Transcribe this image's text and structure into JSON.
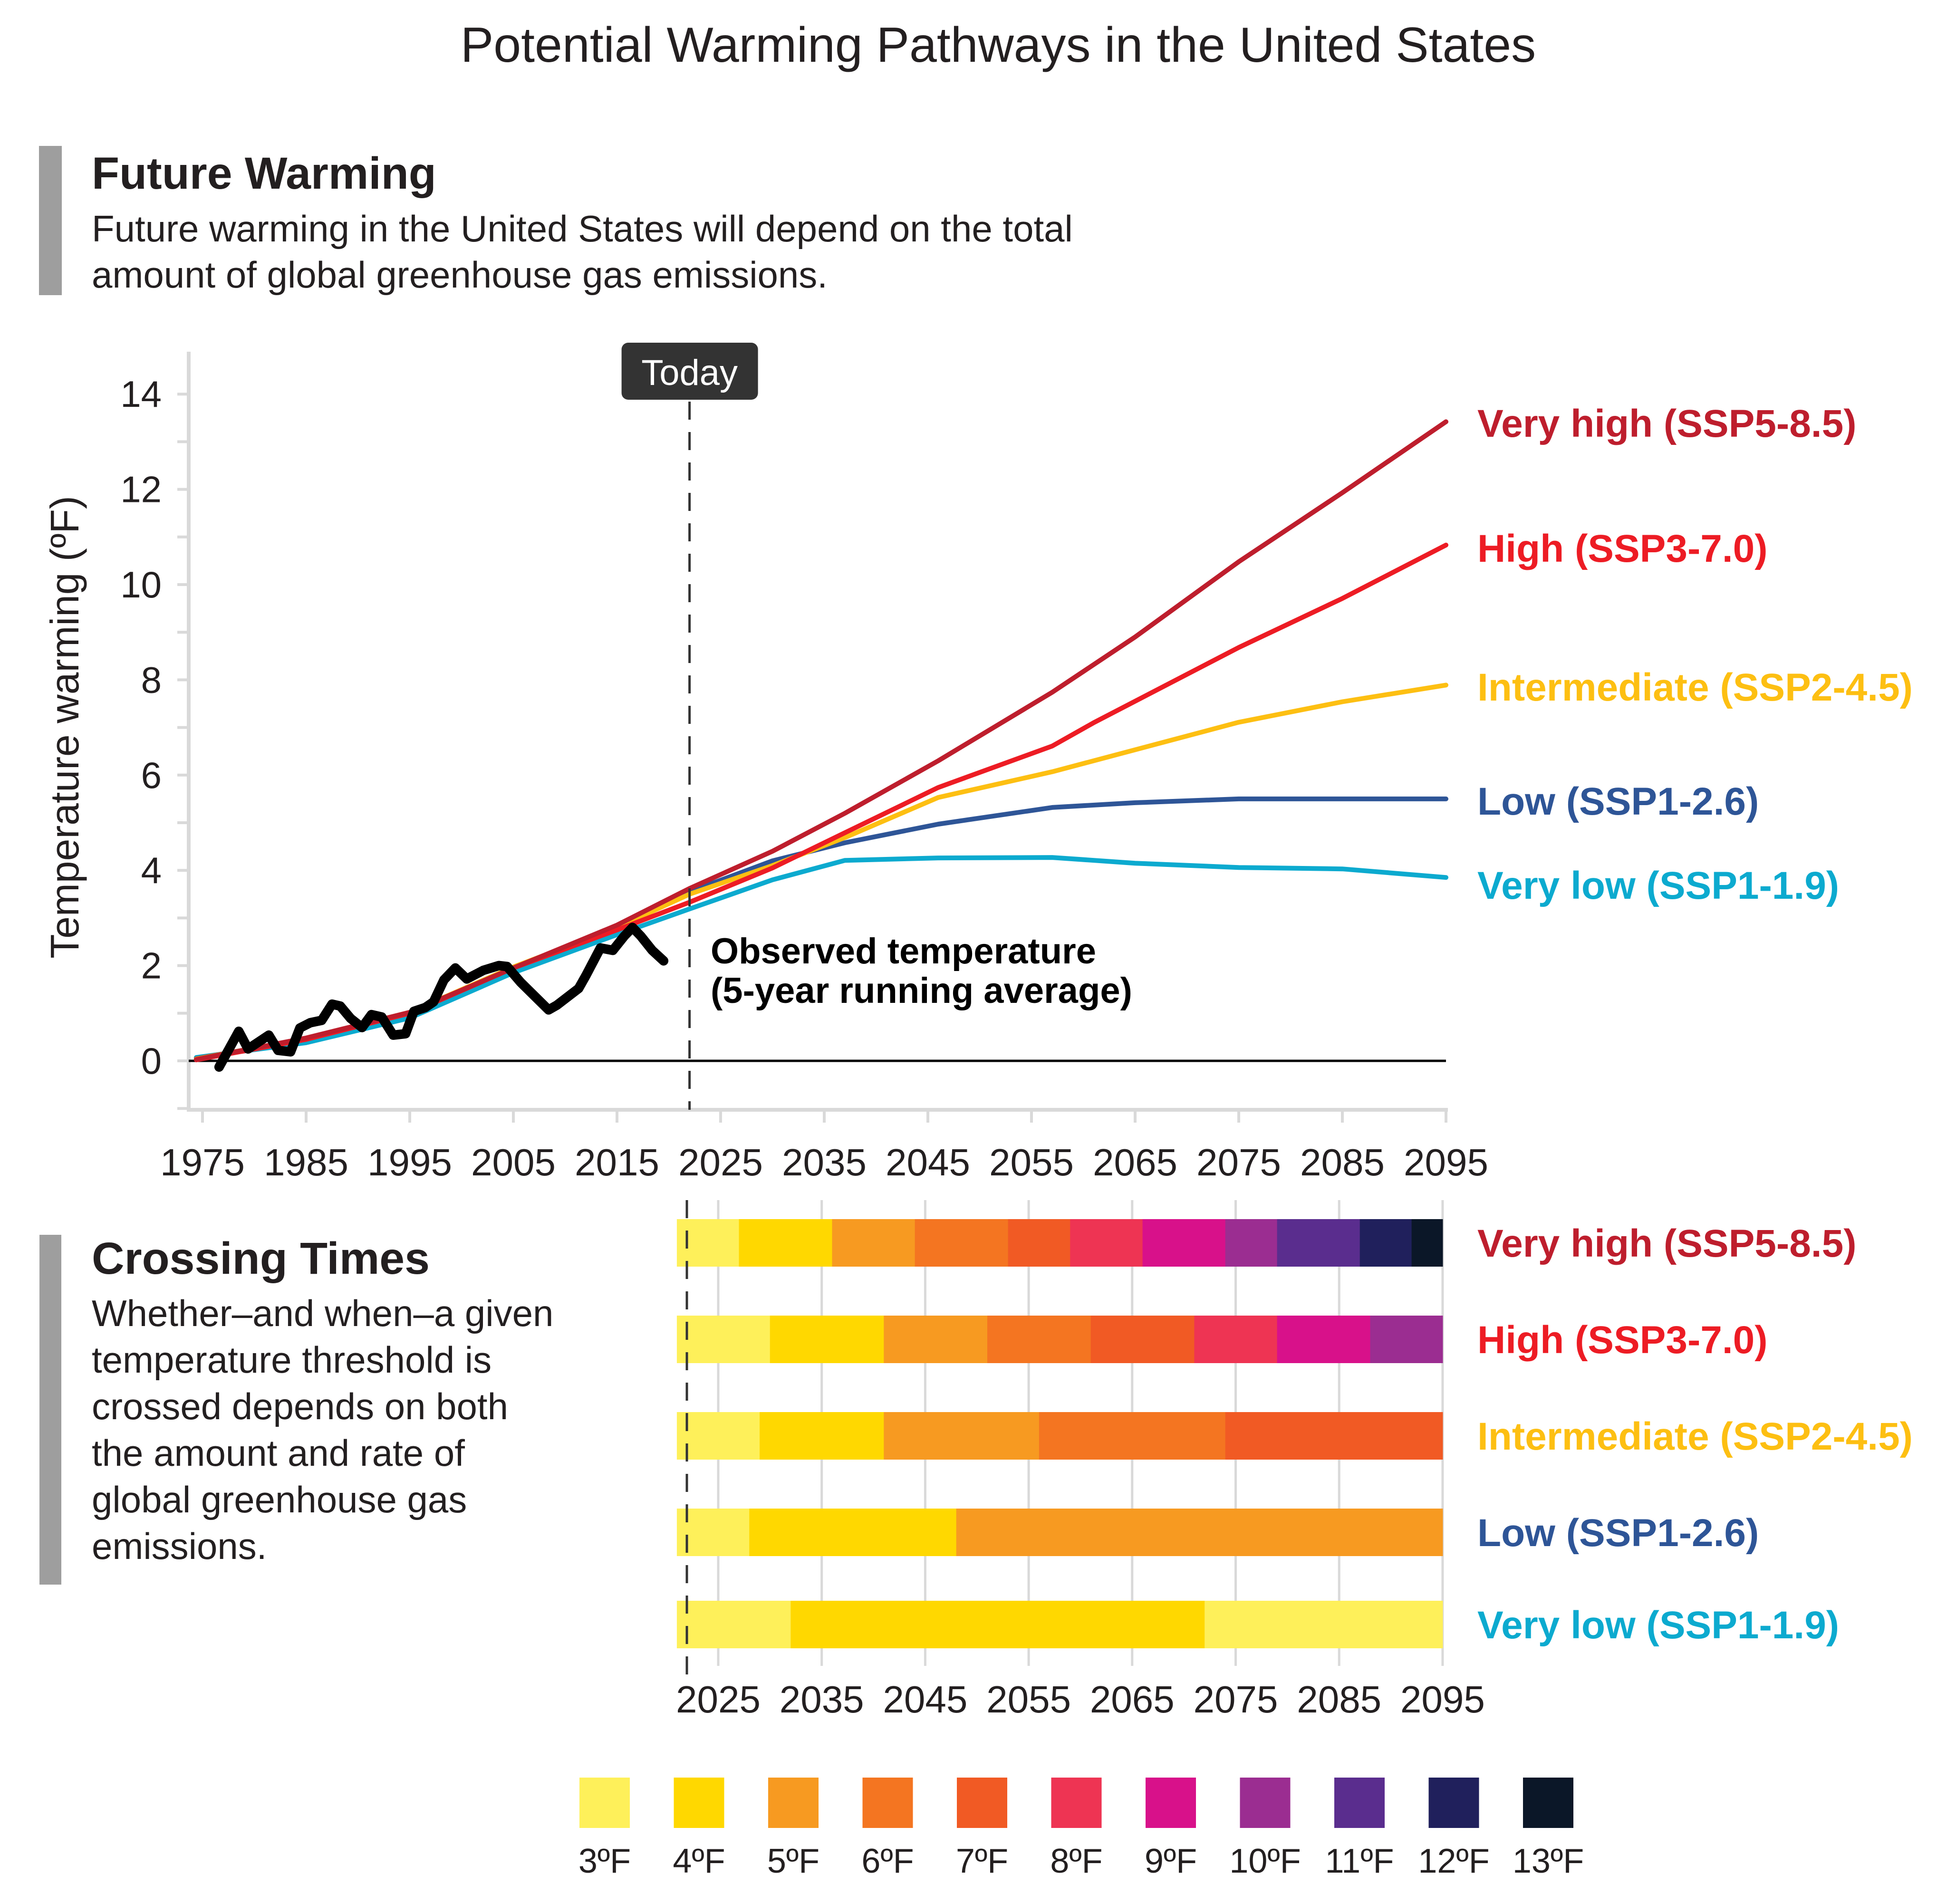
{
  "title": "Potential Warming Pathways in the United States",
  "future_section": {
    "heading": "Future Warming",
    "body_lines": [
      "Future warming in the United States will depend on the total",
      "amount of global greenhouse gas emissions."
    ]
  },
  "crossing_section": {
    "heading": "Crossing Times",
    "body_lines": [
      "Whether–and when–a given",
      "temperature threshold is",
      "crossed depends on both",
      "the amount and rate of",
      "global greenhouse gas",
      "emissions."
    ]
  },
  "colors": {
    "section_bar": "#9e9e9e",
    "axis": "#d9d9d9",
    "today_box": "#333333",
    "observed": "#000000"
  },
  "chart_data": [
    {
      "type": "line",
      "title": "Future Warming",
      "xlabel": "",
      "ylabel": "Temperature warming (ºF)",
      "xlim": [
        1974,
        2095
      ],
      "ylim": [
        -1,
        15
      ],
      "xticks": [
        1975,
        1985,
        1995,
        2005,
        2015,
        2025,
        2035,
        2045,
        2055,
        2065,
        2075,
        2085,
        2095
      ],
      "yticks": [
        0,
        2,
        4,
        6,
        8,
        10,
        12,
        14
      ],
      "grid": false,
      "today": {
        "label": "Today",
        "year": 2022
      },
      "annotation": {
        "lines": [
          "Observed temperature",
          "(5-year running average)"
        ]
      },
      "series": [
        {
          "key": "very_high",
          "name": "Very high (SSP5-8.5)",
          "color": "#BE1E2D",
          "x": [
            1974.4,
            1985,
            1995,
            2005,
            2015,
            2022,
            2030,
            2037,
            2046,
            2057,
            2065,
            2075,
            2085,
            2095
          ],
          "y": [
            0.03,
            0.48,
            1.02,
            1.95,
            2.85,
            3.62,
            4.4,
            5.2,
            6.3,
            7.74,
            8.9,
            10.48,
            11.93,
            13.42
          ]
        },
        {
          "key": "high",
          "name": "High (SSP3-7.0)",
          "color": "#ED1C24",
          "x": [
            1974.4,
            1985,
            1995,
            2005,
            2015,
            2022,
            2030,
            2037,
            2046,
            2057,
            2061,
            2075,
            2085,
            2095
          ],
          "y": [
            0.02,
            0.45,
            1.0,
            1.95,
            2.75,
            3.33,
            4.05,
            4.79,
            5.74,
            6.61,
            7.1,
            8.68,
            9.71,
            10.83
          ]
        },
        {
          "key": "intermediate",
          "name": "Intermediate (SSP2-4.5)",
          "color": "#FDBF12",
          "x": [
            1974.4,
            1985,
            1995,
            2005,
            2015,
            2022,
            2030,
            2037,
            2046,
            2057,
            2061,
            2075,
            2085,
            2095
          ],
          "y": [
            0.04,
            0.47,
            1.02,
            1.97,
            2.8,
            3.5,
            4.1,
            4.69,
            5.53,
            6.07,
            6.3,
            7.11,
            7.54,
            7.89
          ]
        },
        {
          "key": "low",
          "name": "Low (SSP1-2.6)",
          "color": "#2E5597",
          "x": [
            1974.4,
            1985,
            1995,
            2005,
            2015,
            2022,
            2030,
            2037,
            2046,
            2057,
            2065,
            2075,
            2085,
            2095
          ],
          "y": [
            0.05,
            0.46,
            1.0,
            1.95,
            2.8,
            3.55,
            4.2,
            4.58,
            4.97,
            5.32,
            5.42,
            5.5,
            5.5,
            5.5
          ]
        },
        {
          "key": "very_low",
          "name": "Very low (SSP1-1.9)",
          "color": "#0CAACF",
          "x": [
            1974.4,
            1985,
            1995,
            2005,
            2015,
            2022,
            2030,
            2037,
            2046,
            2057,
            2065,
            2075,
            2085,
            2095
          ],
          "y": [
            0.07,
            0.38,
            0.9,
            1.85,
            2.65,
            3.19,
            3.8,
            4.21,
            4.26,
            4.27,
            4.15,
            4.06,
            4.03,
            3.85
          ]
        },
        {
          "key": "observed",
          "name": "Observed temperature (5-year running average)",
          "color": "#000000",
          "x": [
            1976.6,
            1978.5,
            1979.4,
            1981.4,
            1982.3,
            1983.5,
            1984.4,
            1985.4,
            1986.5,
            1987.5,
            1988.3,
            1989.3,
            1990.4,
            1991.3,
            1992.3,
            1993.4,
            1994.6,
            1995.4,
            1996.5,
            1997.3,
            1998.3,
            1999.4,
            2000.5,
            2002.1,
            2003.6,
            2004.4,
            2005.7,
            2008.4,
            2009.2,
            2011.3,
            2012.0,
            2013.4,
            2014.6,
            2015.7,
            2016.5,
            2017.3,
            2018.4,
            2019.5
          ],
          "y": [
            -0.13,
            0.62,
            0.25,
            0.54,
            0.22,
            0.19,
            0.69,
            0.8,
            0.85,
            1.19,
            1.15,
            0.89,
            0.7,
            0.97,
            0.92,
            0.54,
            0.57,
            1.04,
            1.12,
            1.24,
            1.7,
            1.95,
            1.72,
            1.9,
            2.0,
            1.98,
            1.65,
            1.07,
            1.17,
            1.52,
            1.79,
            2.37,
            2.32,
            2.62,
            2.8,
            2.62,
            2.32,
            2.1
          ]
        }
      ]
    },
    {
      "type": "bar",
      "title": "Crossing Times",
      "orientation": "horizontal-stacked",
      "xlim": [
        2021,
        2095
      ],
      "xticks": [
        2025,
        2035,
        2045,
        2055,
        2065,
        2075,
        2085,
        2095
      ],
      "today_year": 2022,
      "thresholds": [
        {
          "label": "3ºF",
          "color": "#FEF05A"
        },
        {
          "label": "4ºF",
          "color": "#FFD800"
        },
        {
          "label": "5ºF",
          "color": "#F79A21"
        },
        {
          "label": "6ºF",
          "color": "#F47521"
        },
        {
          "label": "7ºF",
          "color": "#F15A24"
        },
        {
          "label": "8ºF",
          "color": "#EE3453"
        },
        {
          "label": "9ºF",
          "color": "#D8118A"
        },
        {
          "label": "10ºF",
          "color": "#9B2D91"
        },
        {
          "label": "11ºF",
          "color": "#5A2D8E"
        },
        {
          "label": "12ºF",
          "color": "#20205C"
        },
        {
          "label": "13ºF",
          "color": "#0B1728"
        }
      ],
      "rows": [
        {
          "name": "Very high (SSP5-8.5)",
          "color": "#BE1E2D",
          "segments": [
            [
              2021,
              2027,
              0
            ],
            [
              2027,
              2036,
              1
            ],
            [
              2036,
              2044,
              2
            ],
            [
              2044,
              2053,
              3
            ],
            [
              2053,
              2059,
              4
            ],
            [
              2059,
              2066,
              5
            ],
            [
              2066,
              2074,
              6
            ],
            [
              2074,
              2079,
              7
            ],
            [
              2079,
              2087,
              8
            ],
            [
              2087,
              2092,
              9
            ],
            [
              2092,
              2095,
              10
            ]
          ]
        },
        {
          "name": "High (SSP3-7.0)",
          "color": "#ED1C24",
          "segments": [
            [
              2021,
              2030,
              0
            ],
            [
              2030,
              2041,
              1
            ],
            [
              2041,
              2051,
              2
            ],
            [
              2051,
              2061,
              3
            ],
            [
              2061,
              2071,
              4
            ],
            [
              2071,
              2079,
              5
            ],
            [
              2079,
              2088,
              6
            ],
            [
              2088,
              2095,
              7
            ]
          ]
        },
        {
          "name": "Intermediate (SSP2-4.5)",
          "color": "#FDBF12",
          "segments": [
            [
              2021,
              2029,
              0
            ],
            [
              2029,
              2041,
              1
            ],
            [
              2041,
              2056,
              2
            ],
            [
              2056,
              2074,
              3
            ],
            [
              2074,
              2095,
              4
            ]
          ]
        },
        {
          "name": "Low (SSP1-2.6)",
          "color": "#2E5597",
          "segments": [
            [
              2021,
              2028,
              0
            ],
            [
              2028,
              2048,
              1
            ],
            [
              2048,
              2095,
              2
            ]
          ]
        },
        {
          "name": "Very low (SSP1-1.9)",
          "color": "#0CAACF",
          "segments": [
            [
              2021,
              2032,
              0
            ],
            [
              2032,
              2072,
              1
            ],
            [
              2072,
              2095,
              0
            ]
          ]
        }
      ],
      "legend": "bottom"
    }
  ]
}
